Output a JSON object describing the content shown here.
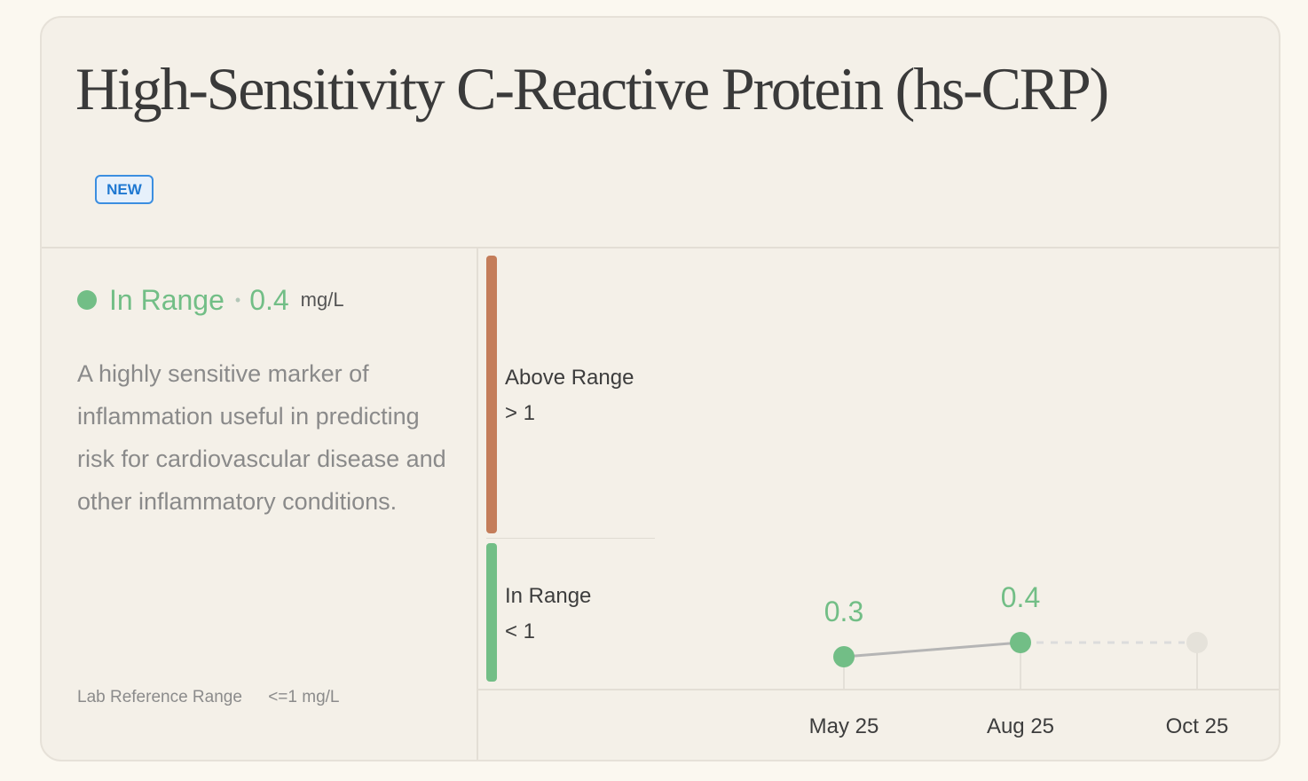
{
  "header": {
    "title": "High-Sensitivity C-Reactive Protein (hs-CRP)",
    "badge": "NEW"
  },
  "status": {
    "label": "In Range",
    "separator": "•",
    "value": "0.4",
    "unit": "mg/L",
    "color": "#72be86"
  },
  "description": "A highly sensitive marker of inflammation useful in predicting risk for cardiovascular disease and other inflammatory conditions.",
  "lab_reference": {
    "label": "Lab Reference Range",
    "value": "<=1 mg/L"
  },
  "ranges": {
    "above": {
      "label": "Above Range",
      "threshold": "> 1",
      "color": "#c47d5a"
    },
    "in": {
      "label": "In Range",
      "threshold": "< 1",
      "color": "#72be86"
    }
  },
  "chart_data": {
    "type": "line",
    "x": [
      "May 25",
      "Aug 25",
      "Oct 25"
    ],
    "series": [
      {
        "values": [
          0.3,
          0.4,
          null
        ]
      }
    ],
    "data_labels": [
      "0.3",
      "0.4",
      ""
    ],
    "pending_point": "Oct 25",
    "unit": "mg/L"
  }
}
